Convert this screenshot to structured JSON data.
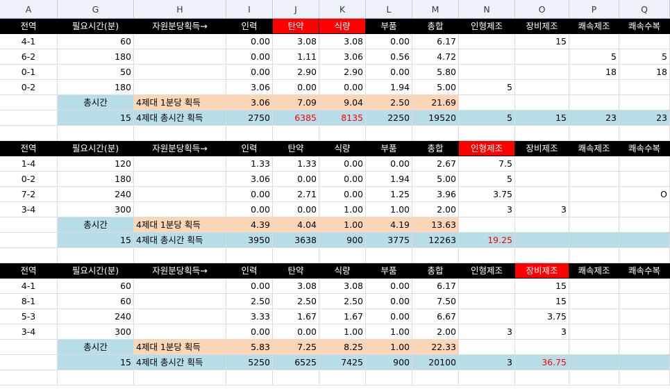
{
  "columns": [
    "A",
    "G",
    "H",
    "I",
    "J",
    "K",
    "L",
    "M",
    "N",
    "O",
    "P",
    "Q"
  ],
  "colors": {
    "header_bg": "#000000",
    "header_highlight": "#ff0000",
    "per_minute_bg": "#fcd5b4",
    "total_bg": "#b7dee8",
    "emphasis_text": "#ff0000"
  },
  "rows": [
    {
      "type": "header",
      "cells": [
        {
          "v": "전역"
        },
        {
          "v": "필요시간(분)"
        },
        {
          "v": "자원분당획득→"
        },
        {
          "v": "인력"
        },
        {
          "v": "탄약",
          "red": 1
        },
        {
          "v": "식량",
          "red": 1
        },
        {
          "v": "부품"
        },
        {
          "v": "총합"
        },
        {
          "v": "인형제조"
        },
        {
          "v": "장비제조"
        },
        {
          "v": "쾌속제조"
        },
        {
          "v": "쾌속수복"
        }
      ]
    },
    {
      "type": "data",
      "cells": [
        {
          "v": "4-1"
        },
        {
          "v": "60"
        },
        {
          "v": ""
        },
        {
          "v": "0.00"
        },
        {
          "v": "3.08"
        },
        {
          "v": "3.08"
        },
        {
          "v": "0.00"
        },
        {
          "v": "6.17"
        },
        {
          "v": ""
        },
        {
          "v": "15"
        },
        {
          "v": ""
        },
        {
          "v": ""
        }
      ]
    },
    {
      "type": "data",
      "cells": [
        {
          "v": "6-2"
        },
        {
          "v": "180"
        },
        {
          "v": ""
        },
        {
          "v": "0.00"
        },
        {
          "v": "1.11"
        },
        {
          "v": "3.06"
        },
        {
          "v": "0.56"
        },
        {
          "v": "4.72"
        },
        {
          "v": ""
        },
        {
          "v": ""
        },
        {
          "v": "5"
        },
        {
          "v": "5"
        }
      ]
    },
    {
      "type": "data",
      "cells": [
        {
          "v": "0-1"
        },
        {
          "v": "50"
        },
        {
          "v": ""
        },
        {
          "v": "0.00"
        },
        {
          "v": "2.90"
        },
        {
          "v": "2.90"
        },
        {
          "v": "0.00"
        },
        {
          "v": "5.80"
        },
        {
          "v": ""
        },
        {
          "v": ""
        },
        {
          "v": "18"
        },
        {
          "v": "18"
        }
      ]
    },
    {
      "type": "data",
      "cells": [
        {
          "v": "0-2"
        },
        {
          "v": "180"
        },
        {
          "v": ""
        },
        {
          "v": "3.06"
        },
        {
          "v": "0.00"
        },
        {
          "v": "0.00"
        },
        {
          "v": "1.94"
        },
        {
          "v": "5.00"
        },
        {
          "v": "5"
        },
        {
          "v": ""
        },
        {
          "v": ""
        },
        {
          "v": ""
        }
      ]
    },
    {
      "type": "permin",
      "cells": [
        {
          "v": ""
        },
        {
          "v": "총시간",
          "ctr": 1
        },
        {
          "v": "4제대 1분당 획득"
        },
        {
          "v": "3.06"
        },
        {
          "v": "7.09"
        },
        {
          "v": "9.04"
        },
        {
          "v": "2.50"
        },
        {
          "v": "21.69"
        },
        {
          "v": ""
        },
        {
          "v": ""
        },
        {
          "v": ""
        },
        {
          "v": ""
        }
      ]
    },
    {
      "type": "total",
      "cells": [
        {
          "v": ""
        },
        {
          "v": "15"
        },
        {
          "v": "4제대 총시간 획득"
        },
        {
          "v": "2750"
        },
        {
          "v": "6385",
          "rt": 1
        },
        {
          "v": "8135",
          "rt": 1
        },
        {
          "v": "2250"
        },
        {
          "v": "19520"
        },
        {
          "v": "5"
        },
        {
          "v": "15"
        },
        {
          "v": "23"
        },
        {
          "v": "23"
        }
      ]
    },
    {
      "type": "spacer",
      "cells": []
    },
    {
      "type": "header",
      "cells": [
        {
          "v": "전역"
        },
        {
          "v": "필요시간(분)"
        },
        {
          "v": "자원분당획득→"
        },
        {
          "v": "인력"
        },
        {
          "v": "탄약"
        },
        {
          "v": "식량"
        },
        {
          "v": "부품"
        },
        {
          "v": "총합"
        },
        {
          "v": "인형제조",
          "red": 1
        },
        {
          "v": "장비제조"
        },
        {
          "v": "쾌속제조"
        },
        {
          "v": "쾌속수복"
        }
      ]
    },
    {
      "type": "data",
      "cells": [
        {
          "v": "1-4"
        },
        {
          "v": "120"
        },
        {
          "v": ""
        },
        {
          "v": "1.33"
        },
        {
          "v": "1.33"
        },
        {
          "v": "0.00"
        },
        {
          "v": "0.00"
        },
        {
          "v": "2.67"
        },
        {
          "v": "7.5"
        },
        {
          "v": ""
        },
        {
          "v": ""
        },
        {
          "v": ""
        }
      ]
    },
    {
      "type": "data",
      "cells": [
        {
          "v": "0-2"
        },
        {
          "v": "180"
        },
        {
          "v": ""
        },
        {
          "v": "3.06"
        },
        {
          "v": "0.00"
        },
        {
          "v": "0.00"
        },
        {
          "v": "1.94"
        },
        {
          "v": "5.00"
        },
        {
          "v": "5"
        },
        {
          "v": ""
        },
        {
          "v": ""
        },
        {
          "v": ""
        }
      ]
    },
    {
      "type": "data",
      "cells": [
        {
          "v": "7-2"
        },
        {
          "v": "240"
        },
        {
          "v": ""
        },
        {
          "v": "0.00"
        },
        {
          "v": "2.71"
        },
        {
          "v": "0.00"
        },
        {
          "v": "1.25"
        },
        {
          "v": "3.96"
        },
        {
          "v": "3.75"
        },
        {
          "v": ""
        },
        {
          "v": ""
        },
        {
          "v": "O"
        }
      ]
    },
    {
      "type": "data",
      "cells": [
        {
          "v": "3-4"
        },
        {
          "v": "300"
        },
        {
          "v": ""
        },
        {
          "v": "0.00"
        },
        {
          "v": "0.00"
        },
        {
          "v": "1.00"
        },
        {
          "v": "1.00"
        },
        {
          "v": "2.00"
        },
        {
          "v": "3"
        },
        {
          "v": "3"
        },
        {
          "v": ""
        },
        {
          "v": ""
        }
      ]
    },
    {
      "type": "permin",
      "cells": [
        {
          "v": ""
        },
        {
          "v": "총시간",
          "ctr": 1
        },
        {
          "v": "4제대 1분당 획득"
        },
        {
          "v": "4.39"
        },
        {
          "v": "4.04"
        },
        {
          "v": "1.00"
        },
        {
          "v": "4.19"
        },
        {
          "v": "13.63"
        },
        {
          "v": ""
        },
        {
          "v": ""
        },
        {
          "v": ""
        },
        {
          "v": ""
        }
      ]
    },
    {
      "type": "total",
      "cells": [
        {
          "v": ""
        },
        {
          "v": "15"
        },
        {
          "v": "4제대 총시간 획득"
        },
        {
          "v": "3950"
        },
        {
          "v": "3638"
        },
        {
          "v": "900"
        },
        {
          "v": "3775"
        },
        {
          "v": "12263"
        },
        {
          "v": "19.25",
          "rt": 1
        },
        {
          "v": ""
        },
        {
          "v": ""
        },
        {
          "v": ""
        }
      ]
    },
    {
      "type": "spacer",
      "cells": []
    },
    {
      "type": "header",
      "cells": [
        {
          "v": "전역"
        },
        {
          "v": "필요시간(분)"
        },
        {
          "v": "자원분당획득→"
        },
        {
          "v": "인력"
        },
        {
          "v": "탄약"
        },
        {
          "v": "식량"
        },
        {
          "v": "부품"
        },
        {
          "v": "총합"
        },
        {
          "v": "인형제조"
        },
        {
          "v": "장비제조",
          "red": 1
        },
        {
          "v": "쾌속제조"
        },
        {
          "v": "쾌속수복"
        }
      ]
    },
    {
      "type": "data",
      "cells": [
        {
          "v": "4-1"
        },
        {
          "v": "60"
        },
        {
          "v": ""
        },
        {
          "v": "0.00"
        },
        {
          "v": "3.08"
        },
        {
          "v": "3.08"
        },
        {
          "v": "0.00"
        },
        {
          "v": "6.17"
        },
        {
          "v": ""
        },
        {
          "v": "15"
        },
        {
          "v": ""
        },
        {
          "v": ""
        }
      ]
    },
    {
      "type": "data",
      "cells": [
        {
          "v": "8-1"
        },
        {
          "v": "60"
        },
        {
          "v": ""
        },
        {
          "v": "2.50"
        },
        {
          "v": "2.50"
        },
        {
          "v": "2.50"
        },
        {
          "v": "0.00"
        },
        {
          "v": "7.50"
        },
        {
          "v": ""
        },
        {
          "v": "15"
        },
        {
          "v": ""
        },
        {
          "v": ""
        }
      ]
    },
    {
      "type": "data",
      "cells": [
        {
          "v": "5-3"
        },
        {
          "v": "240"
        },
        {
          "v": ""
        },
        {
          "v": "3.33"
        },
        {
          "v": "1.67"
        },
        {
          "v": "1.67"
        },
        {
          "v": "0.00"
        },
        {
          "v": "6.67"
        },
        {
          "v": ""
        },
        {
          "v": "3.75"
        },
        {
          "v": ""
        },
        {
          "v": ""
        }
      ]
    },
    {
      "type": "data",
      "cells": [
        {
          "v": "3-4"
        },
        {
          "v": "300"
        },
        {
          "v": ""
        },
        {
          "v": "0.00"
        },
        {
          "v": "0.00"
        },
        {
          "v": "1.00"
        },
        {
          "v": "1.00"
        },
        {
          "v": "2.00"
        },
        {
          "v": "3"
        },
        {
          "v": "3"
        },
        {
          "v": ""
        },
        {
          "v": ""
        }
      ]
    },
    {
      "type": "permin",
      "cells": [
        {
          "v": ""
        },
        {
          "v": "총시간",
          "ctr": 1
        },
        {
          "v": "4제대 1분당 획득"
        },
        {
          "v": "5.83"
        },
        {
          "v": "7.25"
        },
        {
          "v": "8.25"
        },
        {
          "v": "1.00"
        },
        {
          "v": "22.33"
        },
        {
          "v": ""
        },
        {
          "v": ""
        },
        {
          "v": ""
        },
        {
          "v": ""
        }
      ]
    },
    {
      "type": "total",
      "cells": [
        {
          "v": ""
        },
        {
          "v": "15"
        },
        {
          "v": "4제대 총시간 획득"
        },
        {
          "v": "5250"
        },
        {
          "v": "6525"
        },
        {
          "v": "7425"
        },
        {
          "v": "900"
        },
        {
          "v": "20100"
        },
        {
          "v": "3"
        },
        {
          "v": "36.75",
          "rt": 1
        },
        {
          "v": ""
        },
        {
          "v": ""
        }
      ]
    },
    {
      "type": "spacer",
      "cells": []
    }
  ]
}
